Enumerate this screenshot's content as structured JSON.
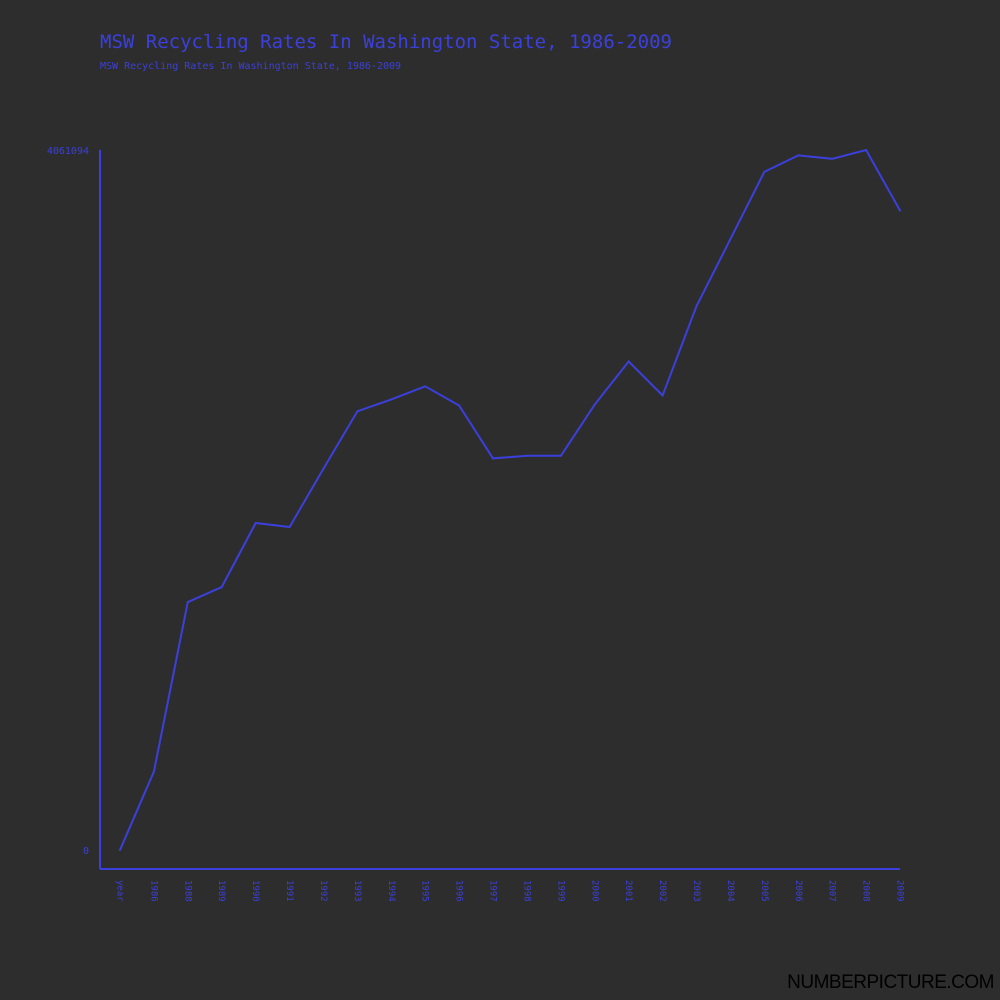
{
  "header": {
    "title": "MSW Recycling Rates In Washington State, 1986-2009",
    "subtitle": "MSW Recycling Rates In Washington State, 1986-2009"
  },
  "footer": {
    "watermark": "NUMBERPICTURE.COM"
  },
  "colors": {
    "background": "#2d2d2d",
    "accent": "#3b40dc"
  },
  "chart_data": {
    "type": "line",
    "title": "MSW Recycling Rates In Washington State, 1986-2009",
    "subtitle": "MSW Recycling Rates In Washington State, 1986-2009",
    "xlabel": "",
    "ylabel": "",
    "y_tick_labels": [
      "0",
      "4061094"
    ],
    "ylim": [
      0,
      4061094
    ],
    "grid": false,
    "legend": "none",
    "categories": [
      "year",
      "1986",
      "1988",
      "1989",
      "1990",
      "1991",
      "1992",
      "1993",
      "1994",
      "1995",
      "1996",
      "1997",
      "1998",
      "1999",
      "2000",
      "2001",
      "2002",
      "2003",
      "2004",
      "2005",
      "2006",
      "2007",
      "2008",
      "2009"
    ],
    "values": [
      0,
      455000,
      1438000,
      1525000,
      1897000,
      1874000,
      2213000,
      2545000,
      2614000,
      2690000,
      2579000,
      2272000,
      2287000,
      2287000,
      2585000,
      2834000,
      2637000,
      3155000,
      3544000,
      3934000,
      4030000,
      4010000,
      4061094,
      3710000
    ]
  }
}
